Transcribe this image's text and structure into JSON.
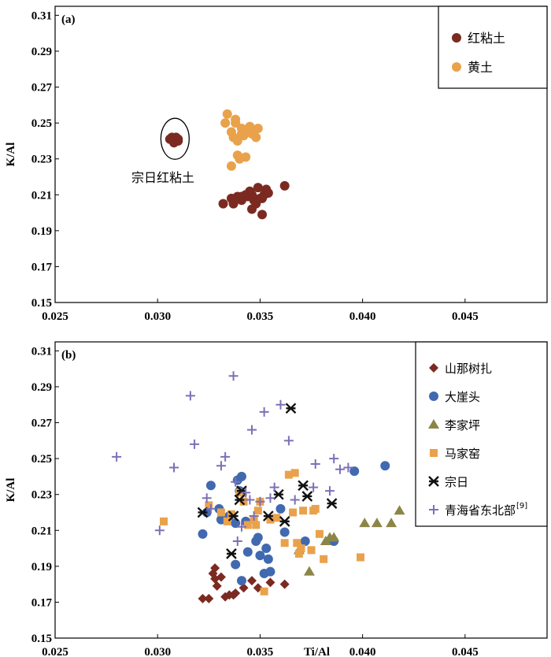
{
  "chart_data": [
    {
      "type": "scatter",
      "panel_label": "(a)",
      "xlabel": "",
      "ylabel": "K/Al",
      "xlim": [
        0.025,
        0.049
      ],
      "ylim": [
        0.15,
        0.315
      ],
      "xticks": [
        "0.025",
        "0.030",
        "0.035",
        "0.040",
        "0.045"
      ],
      "yticks": [
        "0.15",
        "0.17",
        "0.19",
        "0.21",
        "0.23",
        "0.25",
        "0.27",
        "0.29",
        "0.31"
      ],
      "legend_position": "top-right",
      "annotation": "宗日红粘土",
      "series": [
        {
          "name": "红粘土",
          "color": "#7B2A22",
          "marker": "circle",
          "points": [
            [
              0.0306,
              0.241
            ],
            [
              0.0309,
              0.242
            ],
            [
              0.031,
              0.24
            ],
            [
              0.0307,
              0.242
            ],
            [
              0.0308,
              0.239
            ],
            [
              0.031,
              0.241
            ],
            [
              0.0332,
              0.205
            ],
            [
              0.0336,
              0.208
            ],
            [
              0.0337,
              0.205
            ],
            [
              0.0339,
              0.209
            ],
            [
              0.0341,
              0.207
            ],
            [
              0.0341,
              0.209
            ],
            [
              0.0343,
              0.21
            ],
            [
              0.0344,
              0.209
            ],
            [
              0.0345,
              0.212
            ],
            [
              0.0346,
              0.202
            ],
            [
              0.0346,
              0.21
            ],
            [
              0.0347,
              0.208
            ],
            [
              0.0347,
              0.207
            ],
            [
              0.0348,
              0.205
            ],
            [
              0.0349,
              0.214
            ],
            [
              0.035,
              0.208
            ],
            [
              0.0351,
              0.199
            ],
            [
              0.0351,
              0.208
            ],
            [
              0.0352,
              0.21
            ],
            [
              0.0353,
              0.213
            ],
            [
              0.0354,
              0.211
            ],
            [
              0.0362,
              0.215
            ]
          ]
        },
        {
          "name": "黄土",
          "color": "#E9A24B",
          "marker": "circle",
          "points": [
            [
              0.0333,
              0.25
            ],
            [
              0.0334,
              0.255
            ],
            [
              0.0336,
              0.245
            ],
            [
              0.0337,
              0.242
            ],
            [
              0.0338,
              0.252
            ],
            [
              0.0339,
              0.24
            ],
            [
              0.0339,
              0.232
            ],
            [
              0.034,
              0.23
            ],
            [
              0.0341,
              0.247
            ],
            [
              0.0342,
              0.243
            ],
            [
              0.0343,
              0.245
            ],
            [
              0.0343,
              0.231
            ],
            [
              0.0345,
              0.248
            ],
            [
              0.0346,
              0.244
            ],
            [
              0.0347,
              0.246
            ],
            [
              0.0348,
              0.242
            ],
            [
              0.0349,
              0.247
            ],
            [
              0.0336,
              0.226
            ],
            [
              0.0338,
              0.25
            ],
            [
              0.0341,
              0.244
            ]
          ]
        }
      ]
    },
    {
      "type": "scatter",
      "panel_label": "(b)",
      "xlabel": "Ti/Al",
      "ylabel": "K/Al",
      "xlim": [
        0.025,
        0.049
      ],
      "ylim": [
        0.15,
        0.315
      ],
      "xticks": [
        "0.025",
        "0.030",
        "0.035",
        "0.040",
        "0.045"
      ],
      "yticks": [
        "0.15",
        "0.17",
        "0.19",
        "0.21",
        "0.23",
        "0.25",
        "0.27",
        "0.29",
        "0.31"
      ],
      "legend_position": "top-right",
      "series": [
        {
          "name": "山那树扎",
          "color": "#7B2A22",
          "marker": "diamond",
          "points": [
            [
              0.0322,
              0.172
            ],
            [
              0.0325,
              0.172
            ],
            [
              0.0327,
              0.186
            ],
            [
              0.0328,
              0.189
            ],
            [
              0.0328,
              0.183
            ],
            [
              0.0329,
              0.179
            ],
            [
              0.0331,
              0.184
            ],
            [
              0.0333,
              0.173
            ],
            [
              0.0335,
              0.174
            ],
            [
              0.0337,
              0.174
            ],
            [
              0.0338,
              0.175
            ],
            [
              0.0342,
              0.178
            ],
            [
              0.0346,
              0.182
            ],
            [
              0.0349,
              0.178
            ],
            [
              0.0355,
              0.181
            ],
            [
              0.0362,
              0.18
            ]
          ]
        },
        {
          "name": "大崖头",
          "color": "#4169B0",
          "marker": "circle",
          "points": [
            [
              0.0322,
              0.208
            ],
            [
              0.0324,
              0.22
            ],
            [
              0.0326,
              0.235
            ],
            [
              0.033,
              0.222
            ],
            [
              0.0331,
              0.216
            ],
            [
              0.0335,
              0.218
            ],
            [
              0.0338,
              0.191
            ],
            [
              0.0338,
              0.214
            ],
            [
              0.0339,
              0.238
            ],
            [
              0.034,
              0.232
            ],
            [
              0.0341,
              0.24
            ],
            [
              0.0341,
              0.182
            ],
            [
              0.0343,
              0.215
            ],
            [
              0.0344,
              0.198
            ],
            [
              0.0348,
              0.204
            ],
            [
              0.0349,
              0.206
            ],
            [
              0.035,
              0.196
            ],
            [
              0.0352,
              0.186
            ],
            [
              0.0353,
              0.2
            ],
            [
              0.0354,
              0.194
            ],
            [
              0.0355,
              0.187
            ],
            [
              0.036,
              0.222
            ],
            [
              0.0362,
              0.209
            ],
            [
              0.0372,
              0.204
            ],
            [
              0.0386,
              0.204
            ],
            [
              0.0396,
              0.243
            ],
            [
              0.0411,
              0.246
            ]
          ]
        },
        {
          "name": "李家坪",
          "color": "#8B8648",
          "marker": "triangle",
          "points": [
            [
              0.0374,
              0.187
            ],
            [
              0.0382,
              0.204
            ],
            [
              0.0384,
              0.206
            ],
            [
              0.0386,
              0.206
            ],
            [
              0.0401,
              0.214
            ],
            [
              0.0407,
              0.214
            ],
            [
              0.0414,
              0.214
            ],
            [
              0.0418,
              0.221
            ],
            [
              0.0369,
              0.199
            ]
          ]
        },
        {
          "name": "马家窑",
          "color": "#E9A24B",
          "marker": "square",
          "points": [
            [
              0.0303,
              0.215
            ],
            [
              0.0325,
              0.224
            ],
            [
              0.0331,
              0.22
            ],
            [
              0.0334,
              0.215
            ],
            [
              0.0336,
              0.219
            ],
            [
              0.034,
              0.231
            ],
            [
              0.0342,
              0.226
            ],
            [
              0.0344,
              0.213
            ],
            [
              0.0347,
              0.216
            ],
            [
              0.0348,
              0.213
            ],
            [
              0.0349,
              0.221
            ],
            [
              0.035,
              0.226
            ],
            [
              0.0352,
              0.176
            ],
            [
              0.0355,
              0.216
            ],
            [
              0.0358,
              0.217
            ],
            [
              0.0362,
              0.203
            ],
            [
              0.0364,
              0.241
            ],
            [
              0.0366,
              0.22
            ],
            [
              0.0367,
              0.242
            ],
            [
              0.0368,
              0.203
            ],
            [
              0.0369,
              0.197
            ],
            [
              0.037,
              0.2
            ],
            [
              0.0371,
              0.221
            ],
            [
              0.0375,
              0.199
            ],
            [
              0.0376,
              0.221
            ],
            [
              0.0377,
              0.222
            ],
            [
              0.0379,
              0.208
            ],
            [
              0.0381,
              0.194
            ],
            [
              0.0399,
              0.195
            ]
          ]
        },
        {
          "name": "宗日",
          "color": "#111111",
          "marker": "asterisk",
          "points": [
            [
              0.0322,
              0.22
            ],
            [
              0.0336,
              0.197
            ],
            [
              0.0337,
              0.218
            ],
            [
              0.034,
              0.227
            ],
            [
              0.0341,
              0.232
            ],
            [
              0.0354,
              0.218
            ],
            [
              0.0359,
              0.23
            ],
            [
              0.0362,
              0.215
            ],
            [
              0.0365,
              0.278
            ],
            [
              0.0371,
              0.235
            ],
            [
              0.0373,
              0.229
            ],
            [
              0.0385,
              0.225
            ]
          ]
        },
        {
          "name": "青海省东北部",
          "legend_superscript": "[9]",
          "color": "#7C70B8",
          "marker": "plus",
          "points": [
            [
              0.028,
              0.251
            ],
            [
              0.0301,
              0.21
            ],
            [
              0.0308,
              0.245
            ],
            [
              0.0316,
              0.285
            ],
            [
              0.0318,
              0.258
            ],
            [
              0.0324,
              0.228
            ],
            [
              0.0326,
              0.222
            ],
            [
              0.0331,
              0.246
            ],
            [
              0.0333,
              0.251
            ],
            [
              0.0337,
              0.296
            ],
            [
              0.0338,
              0.237
            ],
            [
              0.0339,
              0.204
            ],
            [
              0.0341,
              0.212
            ],
            [
              0.0343,
              0.231
            ],
            [
              0.0345,
              0.227
            ],
            [
              0.0346,
              0.266
            ],
            [
              0.0347,
              0.218
            ],
            [
              0.035,
              0.226
            ],
            [
              0.0352,
              0.276
            ],
            [
              0.0355,
              0.228
            ],
            [
              0.0357,
              0.234
            ],
            [
              0.036,
              0.28
            ],
            [
              0.0364,
              0.26
            ],
            [
              0.0367,
              0.227
            ],
            [
              0.0376,
              0.234
            ],
            [
              0.0377,
              0.247
            ],
            [
              0.0384,
              0.232
            ],
            [
              0.0386,
              0.25
            ],
            [
              0.0389,
              0.244
            ],
            [
              0.0393,
              0.245
            ]
          ]
        }
      ]
    }
  ]
}
